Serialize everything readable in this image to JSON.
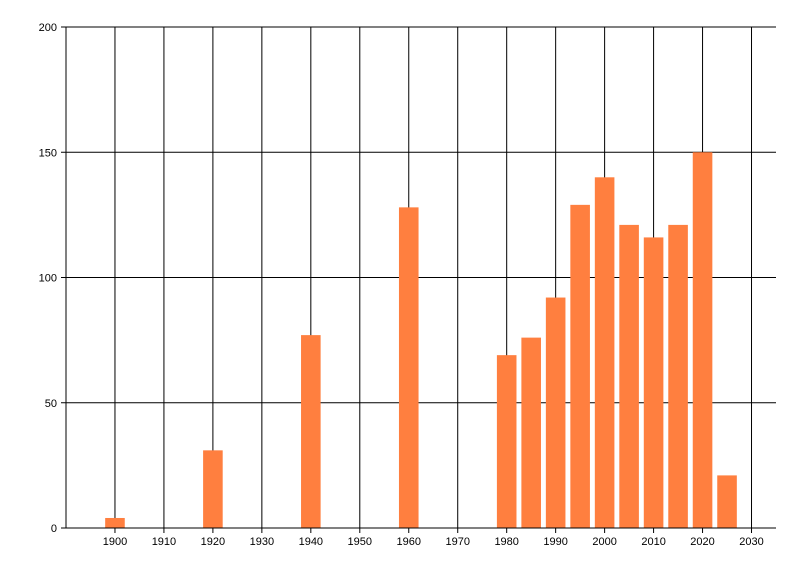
{
  "chart_data": {
    "type": "bar",
    "x": [
      1900,
      1920,
      1940,
      1960,
      1980,
      1985,
      1990,
      1995,
      2000,
      2005,
      2010,
      2015,
      2020,
      2025
    ],
    "values": [
      4,
      31,
      77,
      128,
      69,
      76,
      92,
      129,
      140,
      121,
      116,
      121,
      150,
      21
    ],
    "x_ticks": [
      1900,
      1910,
      1920,
      1930,
      1940,
      1950,
      1960,
      1970,
      1980,
      1990,
      2000,
      2010,
      2020,
      2030
    ],
    "y_ticks": [
      0,
      50,
      100,
      150,
      200
    ],
    "xlim": [
      1890,
      2035
    ],
    "ylim": [
      0,
      200
    ],
    "grid": true,
    "bar_color": "#FF7F3F",
    "title": "",
    "xlabel": "",
    "ylabel": ""
  }
}
